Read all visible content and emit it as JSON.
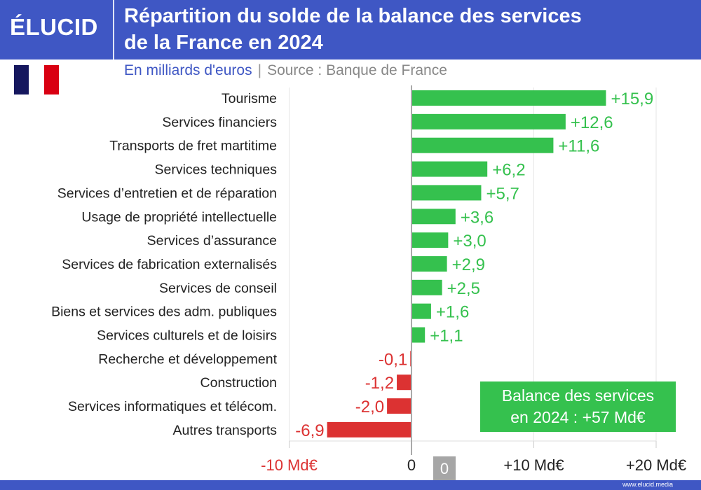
{
  "brand": "ÉLUCID",
  "title_line1": "Répartition du solde de la balance des services",
  "title_line2": "de la France en 2024",
  "subtitle": "En milliards d'euros",
  "separator": "|",
  "source": "Source : Banque de France",
  "summary_line1": "Balance des services",
  "summary_line2": "en 2024 : +57 Md€",
  "zero_badge": "0",
  "url": "www.elucid.media",
  "colors": {
    "header": "#3f57c4",
    "positive": "#35c14e",
    "negative": "#dc3232",
    "flag_blue": "#15175e",
    "flag_red": "#d90012"
  },
  "chart_data": {
    "type": "bar",
    "orientation": "horizontal",
    "categories": [
      "Tourisme",
      "Services financiers",
      "Transports de fret martitime",
      "Services techniques",
      "Services d’entretien et de réparation",
      "Usage de propriété intellectuelle",
      "Services d’assurance",
      "Services de fabrication externalisés",
      "Services de conseil",
      "Biens et services des adm. publiques",
      "Services culturels et de loisirs",
      "Recherche et développement",
      "Construction",
      "Services informatiques et télécom.",
      "Autres transports"
    ],
    "values": [
      15.9,
      12.6,
      11.6,
      6.2,
      5.7,
      3.6,
      3.0,
      2.9,
      2.5,
      1.6,
      1.1,
      -0.1,
      -1.2,
      -2.0,
      -6.9
    ],
    "labels": [
      "+15,9",
      "+12,6",
      "+11,6",
      "+6,2",
      "+5,7",
      "+3,6",
      "+3,0",
      "+2,9",
      "+2,5",
      "+1,6",
      "+1,1",
      "-0,1",
      "-1,2",
      "-2,0",
      "-6,9"
    ],
    "xlim": [
      -10,
      20
    ],
    "xticks": [
      -10,
      0,
      10,
      20
    ],
    "xtick_labels": [
      "-10 Md€",
      "0",
      "+10 Md€",
      "+20 Md€"
    ],
    "grid": true
  }
}
